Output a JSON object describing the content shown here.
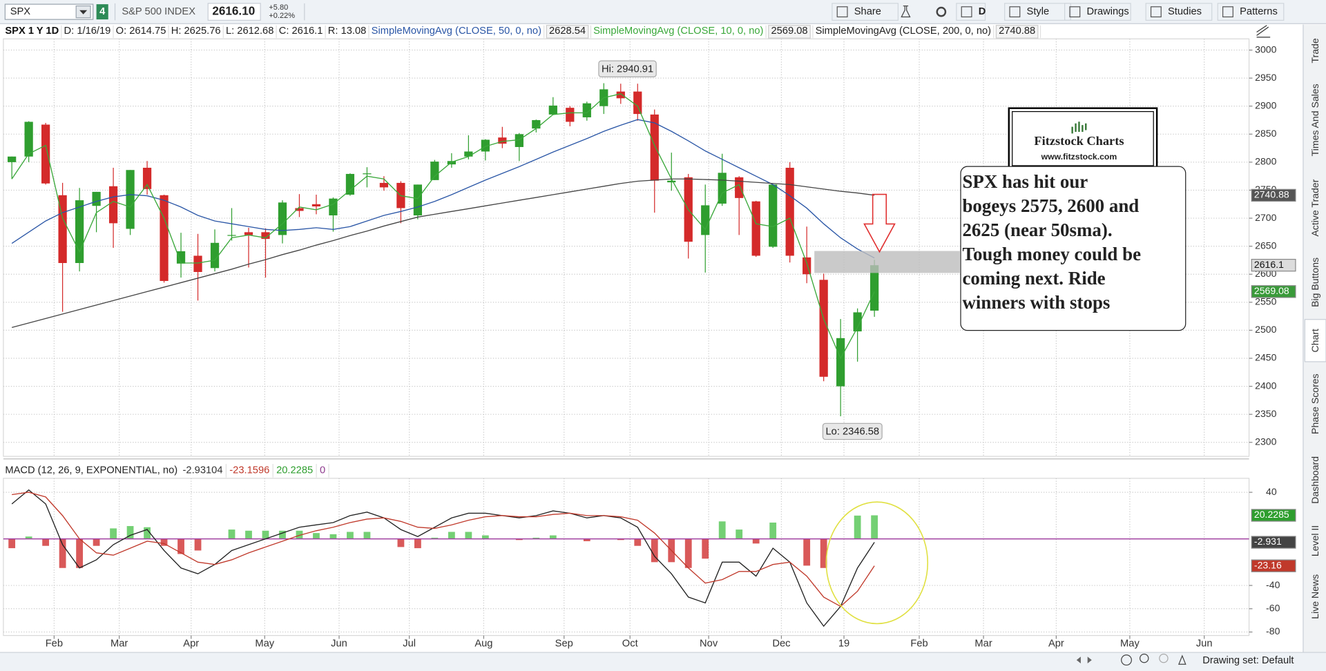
{
  "toolbar": {
    "symbol": "SPX",
    "badge": "4",
    "description": "S&P 500 INDEX",
    "last": "2616.10",
    "change": "+5.80",
    "change_pct": "+0.22%",
    "buttons": [
      "Share",
      "D",
      "Style",
      "Drawings",
      "Studies",
      "Patterns"
    ]
  },
  "info_bar": {
    "symbol_period": "SPX 1 Y 1D",
    "items": [
      "D: 1/16/19",
      "O: 2614.75",
      "H: 2625.76",
      "L: 2612.68",
      "C: 2616.1",
      "R: 13.08"
    ]
  },
  "annotations": {
    "high": "Hi: 2940.91",
    "low": "Lo: 2346.58",
    "logo_title": "Fitzstock Charts",
    "logo_url": "www.fitzstock.com",
    "note_lines": [
      "SPX has hit our",
      "bogeys 2575, 2600 and",
      "2625 (near 50sma).",
      "Tough money could be",
      "coming next.  Ride",
      "winners with stops"
    ]
  },
  "sidebar": {
    "tabs": [
      "Trade",
      "Times And Sales",
      "Active Trader",
      "Big Buttons",
      "Chart",
      "Phase Scores",
      "Dashboard",
      "Level II",
      "Live News"
    ]
  },
  "status_bar": {
    "drawing_set": "Drawing set: Default"
  },
  "chart_data": [
    {
      "type": "candlestick",
      "up_color": "#2f9e2f",
      "down_color": "#d42a2a",
      "grid": true,
      "xlim": [
        0,
        73.65
      ],
      "ylim": [
        2275,
        3020
      ],
      "yticks": [
        3000,
        2950,
        2900,
        2850,
        2800,
        2750,
        2700,
        2650,
        2600,
        2550,
        2500,
        2450,
        2400,
        2350,
        2300
      ],
      "x": [
        0.5,
        1.5,
        2.5,
        3.5,
        4.5,
        5.5,
        6.5,
        7.5,
        8.5,
        9.5,
        10.5,
        11.5,
        12.5,
        13.5,
        14.5,
        15.5,
        16.5,
        17.5,
        18.5,
        19.5,
        20.5,
        21.5,
        22.5,
        23.5,
        24.5,
        25.5,
        26.5,
        27.5,
        28.5,
        29.5,
        30.5,
        31.5,
        32.5,
        33.5,
        34.5,
        35.5,
        36.5,
        37.5,
        38.5,
        39.5,
        40.5,
        41.5,
        42.5,
        43.5,
        44.5,
        45.5,
        46.5,
        47.5,
        48.5,
        49.5,
        50.5,
        51.5
      ],
      "open": [
        2800,
        2810,
        2867,
        2741,
        2620,
        2722,
        2757,
        2681,
        2790,
        2741,
        2619,
        2633,
        2611,
        2670,
        2675,
        2675,
        2670,
        2718,
        2725,
        2705,
        2742,
        2780,
        2763,
        2763,
        2705,
        2768,
        2796,
        2810,
        2819,
        2844,
        2827,
        2860,
        2885,
        2897,
        2880,
        2900,
        2926,
        2926,
        2885,
        2764,
        2773,
        2670,
        2726,
        2773,
        2730,
        2649,
        2790,
        2630,
        2590,
        2400,
        2498,
        2535
      ],
      "high": [
        2810,
        2873,
        2870,
        2763,
        2754,
        2747,
        2790,
        2786,
        2802,
        2742,
        2674,
        2672,
        2680,
        2718,
        2683,
        2682,
        2732,
        2743,
        2742,
        2737,
        2780,
        2791,
        2775,
        2766,
        2760,
        2804,
        2816,
        2848,
        2841,
        2863,
        2852,
        2876,
        2916,
        2900,
        2908,
        2940.91,
        2940,
        2940,
        2894,
        2817,
        2779,
        2760,
        2815,
        2775,
        2731,
        2760,
        2800,
        2685,
        2601,
        2520,
        2539,
        2625.76
      ],
      "low": [
        2770,
        2800,
        2760,
        2533,
        2605,
        2675,
        2647,
        2670,
        2742,
        2585,
        2594,
        2553,
        2605,
        2660,
        2612,
        2594,
        2655,
        2702,
        2707,
        2676,
        2740,
        2755,
        2749,
        2691,
        2698,
        2768,
        2790,
        2805,
        2803,
        2825,
        2802,
        2853,
        2884,
        2864,
        2874,
        2886,
        2904,
        2874,
        2710,
        2749,
        2628,
        2603,
        2722,
        2670,
        2631,
        2647,
        2621,
        2584,
        2409,
        2346.58,
        2444,
        2524
      ],
      "close": [
        2810,
        2872,
        2762,
        2620,
        2732,
        2747,
        2691,
        2786,
        2752,
        2588,
        2641,
        2604,
        2656,
        2670,
        2670,
        2663,
        2728,
        2713,
        2721,
        2735,
        2779,
        2780,
        2755,
        2718,
        2760,
        2801,
        2802,
        2819,
        2840,
        2833,
        2850,
        2875,
        2901,
        2872,
        2905,
        2930,
        2914,
        2886,
        2767,
        2767,
        2658,
        2723,
        2781,
        2736,
        2633,
        2760,
        2633,
        2600,
        2417,
        2486,
        2532,
        2616.1
      ],
      "series": [
        {
          "name": "SimpleMovingAvg (CLOSE, 50, 0, no)",
          "color": "#2a56a6",
          "current": 2628.54,
          "values": [
            2655,
            2675,
            2695,
            2710,
            2720,
            2730,
            2738,
            2742,
            2740,
            2732,
            2720,
            2705,
            2695,
            2690,
            2685,
            2680,
            2678,
            2680,
            2683,
            2680,
            2685,
            2695,
            2705,
            2712,
            2720,
            2730,
            2742,
            2755,
            2768,
            2780,
            2792,
            2805,
            2818,
            2830,
            2842,
            2855,
            2866,
            2876,
            2870,
            2855,
            2838,
            2820,
            2805,
            2790,
            2775,
            2760,
            2740,
            2718,
            2690,
            2665,
            2645,
            2629
          ]
        },
        {
          "name": "SimpleMovingAvg (CLOSE, 10, 0, no)",
          "color": "#3aa83a",
          "current": 2569.08,
          "values": [
            2770,
            2815,
            2830,
            2700,
            2640,
            2710,
            2730,
            2720,
            2760,
            2700,
            2620,
            2620,
            2625,
            2665,
            2670,
            2665,
            2690,
            2720,
            2715,
            2725,
            2750,
            2775,
            2770,
            2740,
            2735,
            2775,
            2800,
            2810,
            2828,
            2837,
            2840,
            2860,
            2885,
            2888,
            2888,
            2915,
            2922,
            2900,
            2830,
            2770,
            2715,
            2680,
            2745,
            2760,
            2690,
            2685,
            2700,
            2620,
            2520,
            2450,
            2505,
            2569
          ]
        },
        {
          "name": "SimpleMovingAvg (CLOSE, 200, 0, no)",
          "color": "#444444",
          "current": 2740.88,
          "values": [
            2505,
            2513,
            2521,
            2529,
            2537,
            2545,
            2553,
            2561,
            2569,
            2577,
            2585,
            2593,
            2601,
            2609,
            2618,
            2626,
            2635,
            2643,
            2652,
            2660,
            2669,
            2677,
            2686,
            2694,
            2702,
            2707,
            2712,
            2717,
            2722,
            2727,
            2732,
            2737,
            2742,
            2747,
            2752,
            2757,
            2762,
            2766,
            2768,
            2770,
            2770,
            2769,
            2768,
            2766,
            2764,
            2762,
            2760,
            2756,
            2752,
            2748,
            2745,
            2741
          ]
        }
      ],
      "tags": [
        {
          "value": 2740.88,
          "color": "#555555"
        },
        {
          "value": 2616.1,
          "color": "#dcdcdc"
        },
        {
          "value": 2569.08,
          "color": "#3a9a3a"
        }
      ]
    },
    {
      "type": "macd",
      "title": "MACD (12, 26, 9, EXPONENTIAL, no)",
      "header_values": [
        -2.93104,
        -23.1596,
        20.2285,
        0
      ],
      "header_colors": [
        "#333333",
        "#c0392b",
        "#2e9e2e",
        "#8e3a8e"
      ],
      "xlim": [
        0,
        73.65
      ],
      "ylim": [
        -83,
        52
      ],
      "yticks": [
        40,
        -40,
        -60,
        -80
      ],
      "zero_color": "#a040a0",
      "xticks": [
        {
          "value": 3.0,
          "label": "Feb"
        },
        {
          "value": 6.85,
          "label": "Mar"
        },
        {
          "value": 11.1,
          "label": "Apr"
        },
        {
          "value": 15.45,
          "label": "May"
        },
        {
          "value": 19.85,
          "label": "Jun"
        },
        {
          "value": 24.0,
          "label": "Jul"
        },
        {
          "value": 28.4,
          "label": "Aug"
        },
        {
          "value": 33.15,
          "label": "Sep"
        },
        {
          "value": 37.05,
          "label": "Oct"
        },
        {
          "value": 41.7,
          "label": "Nov"
        },
        {
          "value": 46.0,
          "label": "Dec"
        },
        {
          "value": 49.7,
          "label": "19"
        },
        {
          "value": 54.15,
          "label": "Feb"
        },
        {
          "value": 57.95,
          "label": "Mar"
        },
        {
          "value": 62.25,
          "label": "Apr"
        },
        {
          "value": 66.6,
          "label": "May"
        },
        {
          "value": 71.0,
          "label": "Jun"
        }
      ],
      "x": [
        0.5,
        1.5,
        2.5,
        3.5,
        4.5,
        5.5,
        6.5,
        7.5,
        8.5,
        9.5,
        10.5,
        11.5,
        12.5,
        13.5,
        14.5,
        15.5,
        16.5,
        17.5,
        18.5,
        19.5,
        20.5,
        21.5,
        22.5,
        23.5,
        24.5,
        25.5,
        26.5,
        27.5,
        28.5,
        29.5,
        30.5,
        31.5,
        32.5,
        33.5,
        34.5,
        35.5,
        36.5,
        37.5,
        38.5,
        39.5,
        40.5,
        41.5,
        42.5,
        43.5,
        44.5,
        45.5,
        46.5,
        47.5,
        48.5,
        49.5,
        50.5,
        51.5
      ],
      "series": [
        {
          "name": "MACD",
          "color": "#222222",
          "values": [
            30,
            42,
            30,
            -5,
            -25,
            -18,
            -5,
            3,
            8,
            -10,
            -25,
            -30,
            -22,
            -10,
            -5,
            0,
            5,
            10,
            12,
            14,
            20,
            23,
            18,
            8,
            2,
            10,
            18,
            22,
            22,
            20,
            18,
            20,
            24,
            22,
            18,
            20,
            18,
            10,
            -15,
            -30,
            -50,
            -55,
            -20,
            -20,
            -32,
            -8,
            -20,
            -55,
            -75,
            -58,
            -25,
            -2.93104
          ]
        },
        {
          "name": "Avg",
          "color": "#c0392b",
          "values": [
            38,
            40,
            36,
            20,
            0,
            -12,
            -14,
            -8,
            -2,
            -4,
            -12,
            -20,
            -22,
            -18,
            -12,
            -7,
            -2,
            3,
            7,
            10,
            14,
            17,
            18,
            15,
            10,
            9,
            12,
            16,
            19,
            20,
            19,
            19,
            21,
            22,
            20,
            20,
            19,
            16,
            5,
            -10,
            -25,
            -38,
            -35,
            -28,
            -28,
            -22,
            -20,
            -32,
            -50,
            -58,
            -45,
            -23.1596
          ]
        }
      ],
      "histogram": {
        "positive_color": "#5cc85c",
        "negative_color": "#d23c3c",
        "values": [
          -8,
          2,
          -6,
          -25,
          -25,
          -6,
          9,
          11,
          10,
          -6,
          -13,
          -10,
          0,
          8,
          7,
          7,
          7,
          7,
          5,
          4,
          6,
          6,
          0,
          -7,
          -8,
          1,
          6,
          6,
          3,
          0,
          -1,
          1,
          3,
          0,
          -2,
          0,
          -1,
          -6,
          -20,
          -20,
          -25,
          -17,
          15,
          8,
          -4,
          14,
          0,
          -23,
          -25,
          0,
          20,
          20.2285
        ]
      },
      "tags": [
        {
          "value": 20.2285,
          "color": "#2e9e2e"
        },
        {
          "value": -2.931,
          "color": "#444444"
        },
        {
          "value": -23.16,
          "color": "#c0392b"
        }
      ]
    }
  ]
}
